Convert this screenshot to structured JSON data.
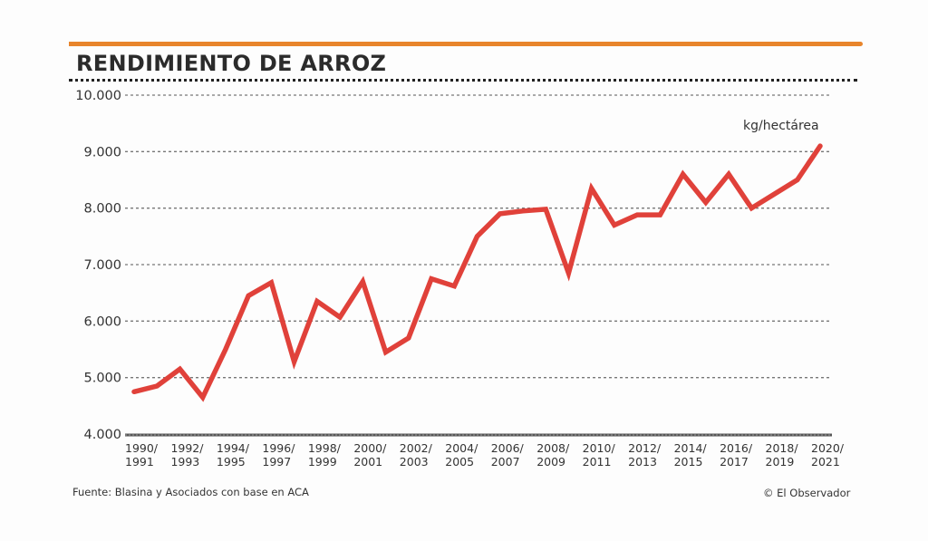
{
  "header": {
    "title": "RENDIMIENTO DE ARROZ",
    "accent_color": "#e8852c"
  },
  "footer": {
    "source": "Fuente: Blasina y Asociados con base en ACA",
    "credit": "© El Observador"
  },
  "chart_data": {
    "type": "line",
    "title": "RENDIMIENTO DE ARROZ",
    "unit_label": "kg/hectárea",
    "xlabel": "",
    "ylabel": "kg/hectárea",
    "ylim": [
      4000,
      10000
    ],
    "yticks": [
      {
        "value": 10000,
        "label": "10.000"
      },
      {
        "value": 9000,
        "label": "9.000"
      },
      {
        "value": 8000,
        "label": "8.000"
      },
      {
        "value": 7000,
        "label": "7.000"
      },
      {
        "value": 6000,
        "label": "6.000"
      },
      {
        "value": 5000,
        "label": "5.000"
      },
      {
        "value": 4000,
        "label": "4.000"
      }
    ],
    "grid": true,
    "line_color": "#e0413a",
    "xtick_labels": [
      {
        "index": 0,
        "line1": "1990/",
        "line2": "1991"
      },
      {
        "index": 2,
        "line1": "1992/",
        "line2": "1993"
      },
      {
        "index": 4,
        "line1": "1994/",
        "line2": "1995"
      },
      {
        "index": 6,
        "line1": "1996/",
        "line2": "1997"
      },
      {
        "index": 8,
        "line1": "1998/",
        "line2": "1999"
      },
      {
        "index": 10,
        "line1": "2000/",
        "line2": "2001"
      },
      {
        "index": 12,
        "line1": "2002/",
        "line2": "2003"
      },
      {
        "index": 14,
        "line1": "2004/",
        "line2": "2005"
      },
      {
        "index": 16,
        "line1": "2006/",
        "line2": "2007"
      },
      {
        "index": 18,
        "line1": "2008/",
        "line2": "2009"
      },
      {
        "index": 20,
        "line1": "2010/",
        "line2": "2011"
      },
      {
        "index": 22,
        "line1": "2012/",
        "line2": "2013"
      },
      {
        "index": 24,
        "line1": "2014/",
        "line2": "2015"
      },
      {
        "index": 26,
        "line1": "2016/",
        "line2": "2017"
      },
      {
        "index": 28,
        "line1": "2018/",
        "line2": "2019"
      },
      {
        "index": 30,
        "line1": "2020/",
        "line2": "2021"
      }
    ],
    "series": [
      {
        "name": "Rendimiento de arroz (kg/hectárea)",
        "x": [
          "1990/91",
          "1991/92",
          "1992/93",
          "1993/94",
          "1994/95",
          "1995/96",
          "1996/97",
          "1997/98",
          "1998/99",
          "1999/00",
          "2000/01",
          "2001/02",
          "2002/03",
          "2003/04",
          "2004/05",
          "2005/06",
          "2006/07",
          "2007/08",
          "2008/09",
          "2009/10",
          "2010/11",
          "2011/12",
          "2012/13",
          "2013/14",
          "2014/15",
          "2015/16",
          "2016/17",
          "2017/18",
          "2018/19",
          "2019/20",
          "2020/21"
        ],
        "values": [
          4750,
          4850,
          5150,
          4650,
          5500,
          6450,
          6680,
          5280,
          6350,
          6070,
          6700,
          5450,
          5700,
          6750,
          6620,
          7500,
          7900,
          7950,
          7980,
          6850,
          8350,
          7700,
          7880,
          7880,
          8600,
          8100,
          8600,
          8000,
          8250,
          8500,
          9100
        ]
      }
    ]
  }
}
